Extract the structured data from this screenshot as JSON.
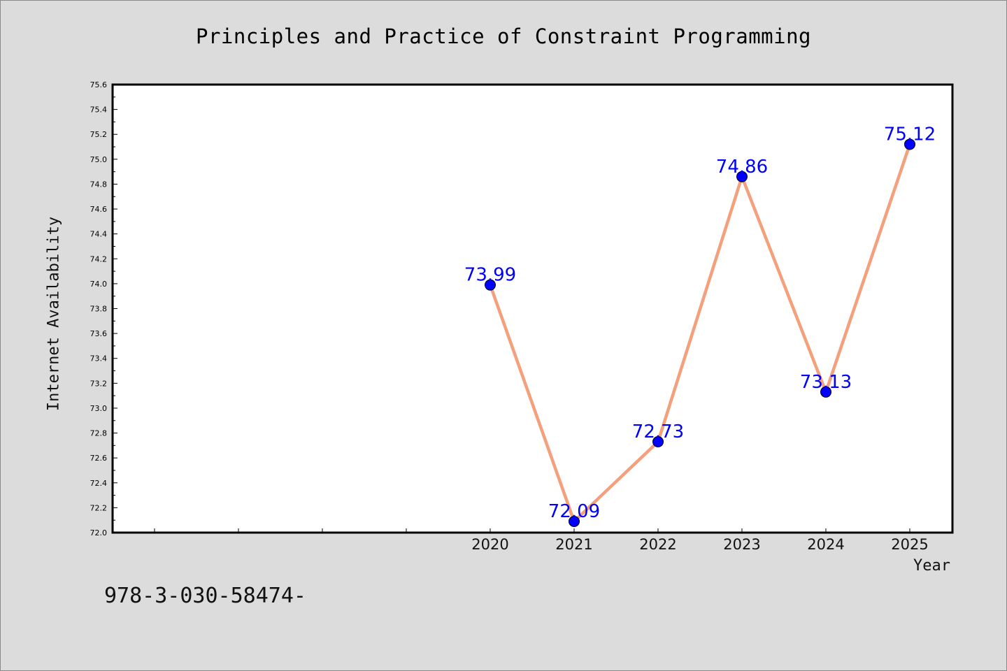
{
  "chart_data": {
    "type": "line",
    "title": "Principles and Practice of Constraint Programming",
    "xlabel": "Year",
    "ylabel": "Internet Availability",
    "x_ticks": [
      "2020",
      "2021",
      "2022",
      "2023",
      "2024",
      "2025"
    ],
    "x": [
      "2020",
      "2021",
      "2022",
      "2023",
      "2024",
      "2025"
    ],
    "series": [
      {
        "values": [
          73.99,
          72.09,
          72.73,
          74.86,
          73.13,
          75.12
        ]
      }
    ],
    "data_labels": [
      "73.99",
      "72.09",
      "72.73",
      "74.86",
      "73.13",
      "75.12"
    ],
    "ylim": [
      72.0,
      75.6
    ],
    "y_ticks": [
      "72.0",
      "72.2",
      "72.4",
      "72.6",
      "72.8",
      "73.0",
      "73.2",
      "73.4",
      "73.6",
      "73.8",
      "74.0",
      "74.2",
      "74.4",
      "74.6",
      "74.8",
      "75.0",
      "75.2",
      "75.4",
      "75.6"
    ],
    "grid": false,
    "legend": "none",
    "line_color": "#f4a07c",
    "marker_color": "#0000ff",
    "label_color": "#0000ff",
    "plot_background": "#ffffff",
    "figure_background": "#dcdcdc"
  },
  "footnote": "978-3-030-58474-"
}
